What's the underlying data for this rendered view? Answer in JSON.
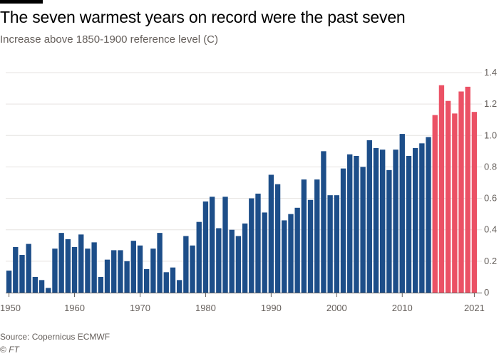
{
  "header": {
    "title": "The seven warmest years on record were the past seven",
    "subtitle": "Increase above 1850-1900 reference level (C)"
  },
  "footer": {
    "source": "Source: Copernicus ECMWF",
    "copyright_symbol": "©",
    "copyright_brand": "FT"
  },
  "colors": {
    "base": "#1d4e89",
    "highlight": "#eb5165",
    "grid": "#e6e3e1",
    "axis": "#66605c"
  },
  "chart_data": {
    "type": "bar",
    "title": "The seven warmest years on record were the past seven",
    "subtitle": "Increase above 1850-1900 reference level (C)",
    "x_tick_labels": [
      "1950",
      "1960",
      "1970",
      "1980",
      "1990",
      "2000",
      "2010",
      "2021"
    ],
    "y_tick_labels": [
      "0",
      "0.2",
      "0.4",
      "0.6",
      "0.8",
      "1.0",
      "1.2",
      "1.4"
    ],
    "ylim": [
      0,
      1.4
    ],
    "y_axis_side": "right",
    "grid": true,
    "highlight_from": "2015",
    "categories": [
      "1950",
      "1951",
      "1952",
      "1953",
      "1954",
      "1955",
      "1956",
      "1957",
      "1958",
      "1959",
      "1960",
      "1961",
      "1962",
      "1963",
      "1964",
      "1965",
      "1966",
      "1967",
      "1968",
      "1969",
      "1970",
      "1971",
      "1972",
      "1973",
      "1974",
      "1975",
      "1976",
      "1977",
      "1978",
      "1979",
      "1980",
      "1981",
      "1982",
      "1983",
      "1984",
      "1985",
      "1986",
      "1987",
      "1988",
      "1989",
      "1990",
      "1991",
      "1992",
      "1993",
      "1994",
      "1995",
      "1996",
      "1997",
      "1998",
      "1999",
      "2000",
      "2001",
      "2002",
      "2003",
      "2004",
      "2005",
      "2006",
      "2007",
      "2008",
      "2009",
      "2010",
      "2011",
      "2012",
      "2013",
      "2014",
      "2015",
      "2016",
      "2017",
      "2018",
      "2019",
      "2020",
      "2021"
    ],
    "values": [
      0.14,
      0.29,
      0.24,
      0.31,
      0.1,
      0.08,
      0.03,
      0.28,
      0.38,
      0.34,
      0.29,
      0.37,
      0.28,
      0.32,
      0.1,
      0.21,
      0.27,
      0.27,
      0.2,
      0.33,
      0.3,
      0.15,
      0.28,
      0.38,
      0.13,
      0.16,
      0.08,
      0.36,
      0.3,
      0.45,
      0.58,
      0.61,
      0.41,
      0.61,
      0.4,
      0.36,
      0.44,
      0.6,
      0.63,
      0.51,
      0.75,
      0.69,
      0.46,
      0.5,
      0.54,
      0.72,
      0.59,
      0.72,
      0.9,
      0.62,
      0.62,
      0.79,
      0.88,
      0.87,
      0.8,
      0.97,
      0.92,
      0.91,
      0.78,
      0.91,
      1.01,
      0.87,
      0.92,
      0.95,
      0.99,
      1.13,
      1.32,
      1.22,
      1.14,
      1.28,
      1.31,
      1.15
    ]
  }
}
